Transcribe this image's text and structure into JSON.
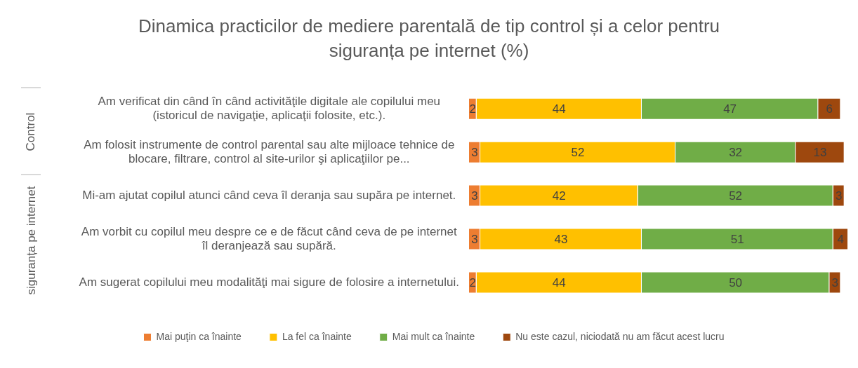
{
  "chart_data": {
    "type": "bar",
    "orientation": "horizontal",
    "stacked": true,
    "data_labels": true,
    "legend": "bottom",
    "title": "Dinamica practicilor de mediere parentală de tip control și a celor pentru siguranța pe internet (%)",
    "categories": [
      "Am verificat din când în când activităţile digitale ale copilului meu (istoricul de navigaţie, aplicaţii folosite, etc.).",
      "Am folosit instrumente de control parental sau alte mijloace tehnice de blocare, filtrare, control al site-urilor şi aplicaţiilor pe...",
      "Mi-am ajutat copilul atunci când ceva îl deranja sau supăra pe internet.",
      "Am vorbit cu copilul meu despre ce e de făcut când ceva de pe internet îl deranjează sau supără.",
      "Am sugerat copilului meu modalităţi mai sigure de folosire a internetului."
    ],
    "series": [
      {
        "name": "Mai puţin ca înainte",
        "color": "#ed7d31",
        "values": [
          2,
          3,
          3,
          3,
          2
        ]
      },
      {
        "name": "La fel ca înainte",
        "color": "#ffc000",
        "values": [
          44,
          52,
          42,
          43,
          44
        ]
      },
      {
        "name": "Mai mult ca înainte",
        "color": "#70ad47",
        "values": [
          47,
          32,
          52,
          51,
          50
        ]
      },
      {
        "name": "Nu este cazul, niciodată nu am făcut acest lucru",
        "color": "#9e480e",
        "values": [
          6,
          13,
          3,
          4,
          3
        ]
      }
    ],
    "annotations": [
      "Control",
      "siguranța pe internet"
    ]
  }
}
